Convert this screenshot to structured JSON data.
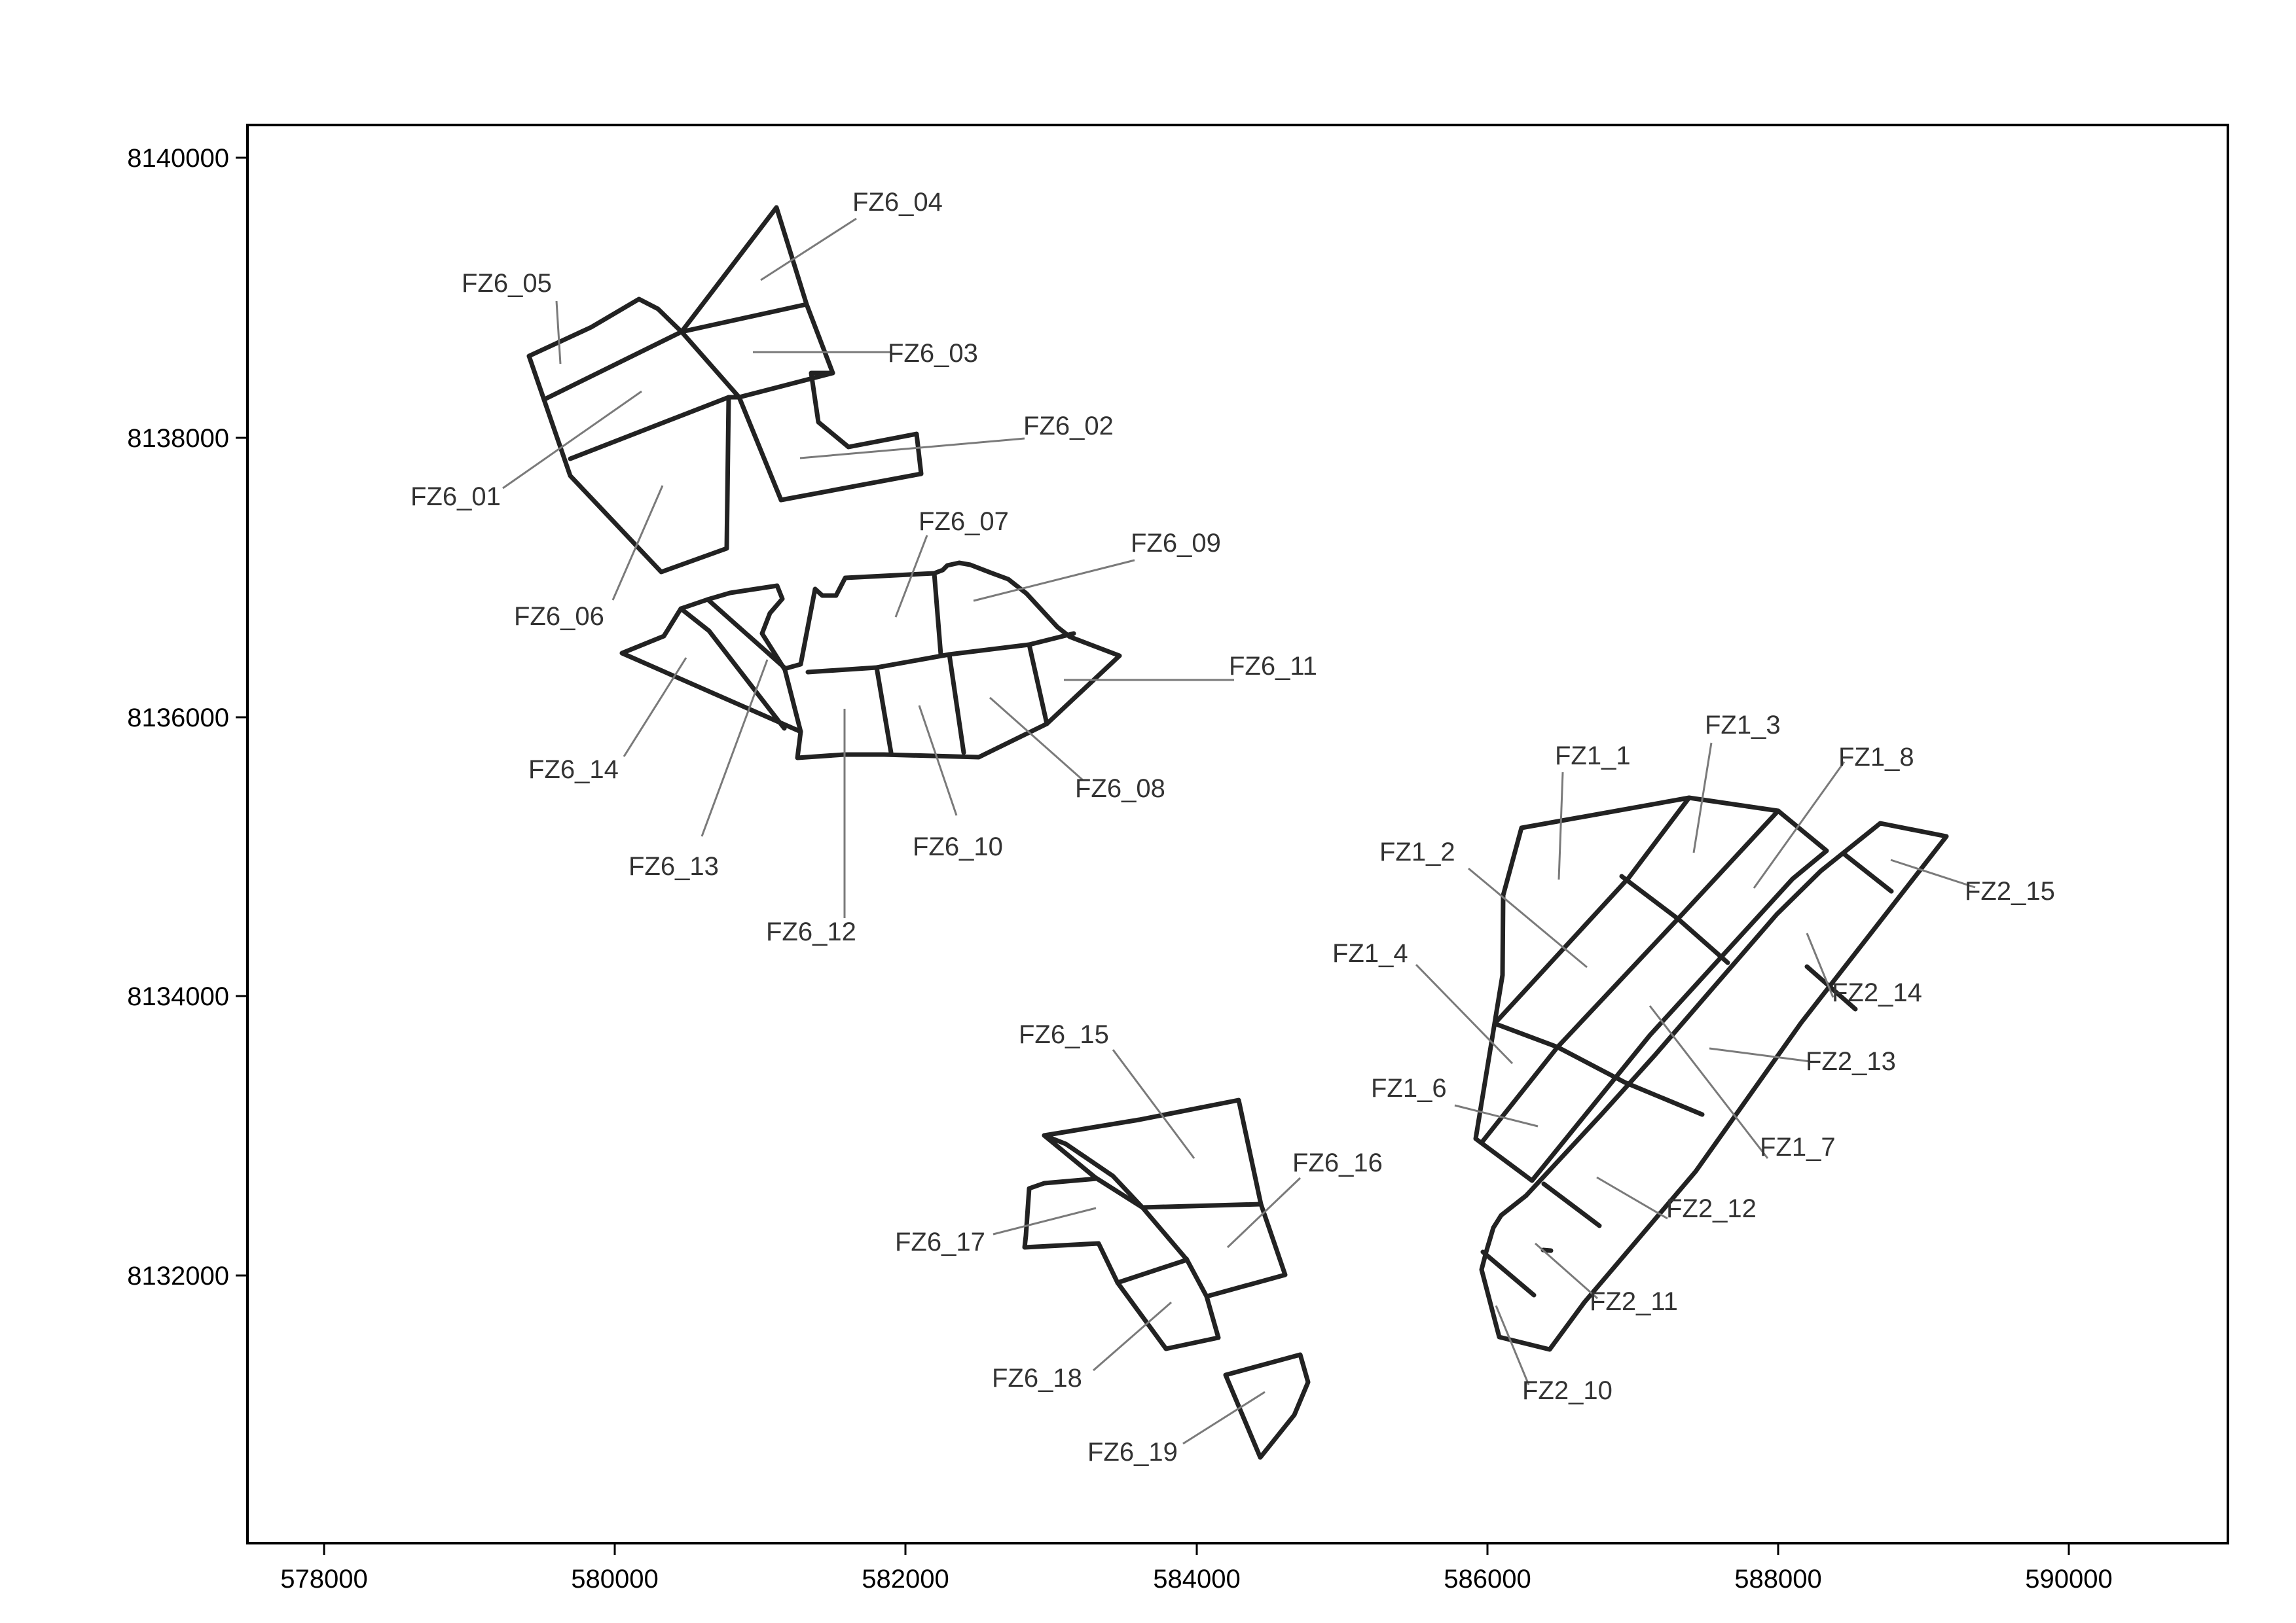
{
  "axes": {
    "x_ticks": [
      "578000",
      "580000",
      "582000",
      "584000",
      "586000",
      "588000",
      "590000"
    ],
    "y_ticks": [
      "8140000",
      "8138000",
      "8136000",
      "8134000",
      "8132000"
    ]
  },
  "colors": {
    "frame": "#000000",
    "parcel_outline": "#222222",
    "leader_line": "#7a7a7a",
    "label_text": "#333333"
  },
  "field_labels": {
    "fz6_01": "FZ6_01",
    "fz6_02": "FZ6_02",
    "fz6_03": "FZ6_03",
    "fz6_04": "FZ6_04",
    "fz6_05": "FZ6_05",
    "fz6_06": "FZ6_06",
    "fz6_07": "FZ6_07",
    "fz6_08": "FZ6_08",
    "fz6_09": "FZ6_09",
    "fz6_10": "FZ6_10",
    "fz6_11": "FZ6_11",
    "fz6_12": "FZ6_12",
    "fz6_13": "FZ6_13",
    "fz6_14": "FZ6_14",
    "fz6_15": "FZ6_15",
    "fz6_16": "FZ6_16",
    "fz6_17": "FZ6_17",
    "fz6_18": "FZ6_18",
    "fz6_19": "FZ6_19",
    "fz1_1": "FZ1_1",
    "fz1_2": "FZ1_2",
    "fz1_3": "FZ1_3",
    "fz1_4": "FZ1_4",
    "fz1_6": "FZ1_6",
    "fz1_7": "FZ1_7",
    "fz1_8": "FZ1_8",
    "fz2_10": "FZ2_10",
    "fz2_11": "FZ2_11",
    "fz2_12": "FZ2_12",
    "fz2_13": "FZ2_13",
    "fz2_14": "FZ2_14",
    "fz2_15": "FZ2_15"
  }
}
